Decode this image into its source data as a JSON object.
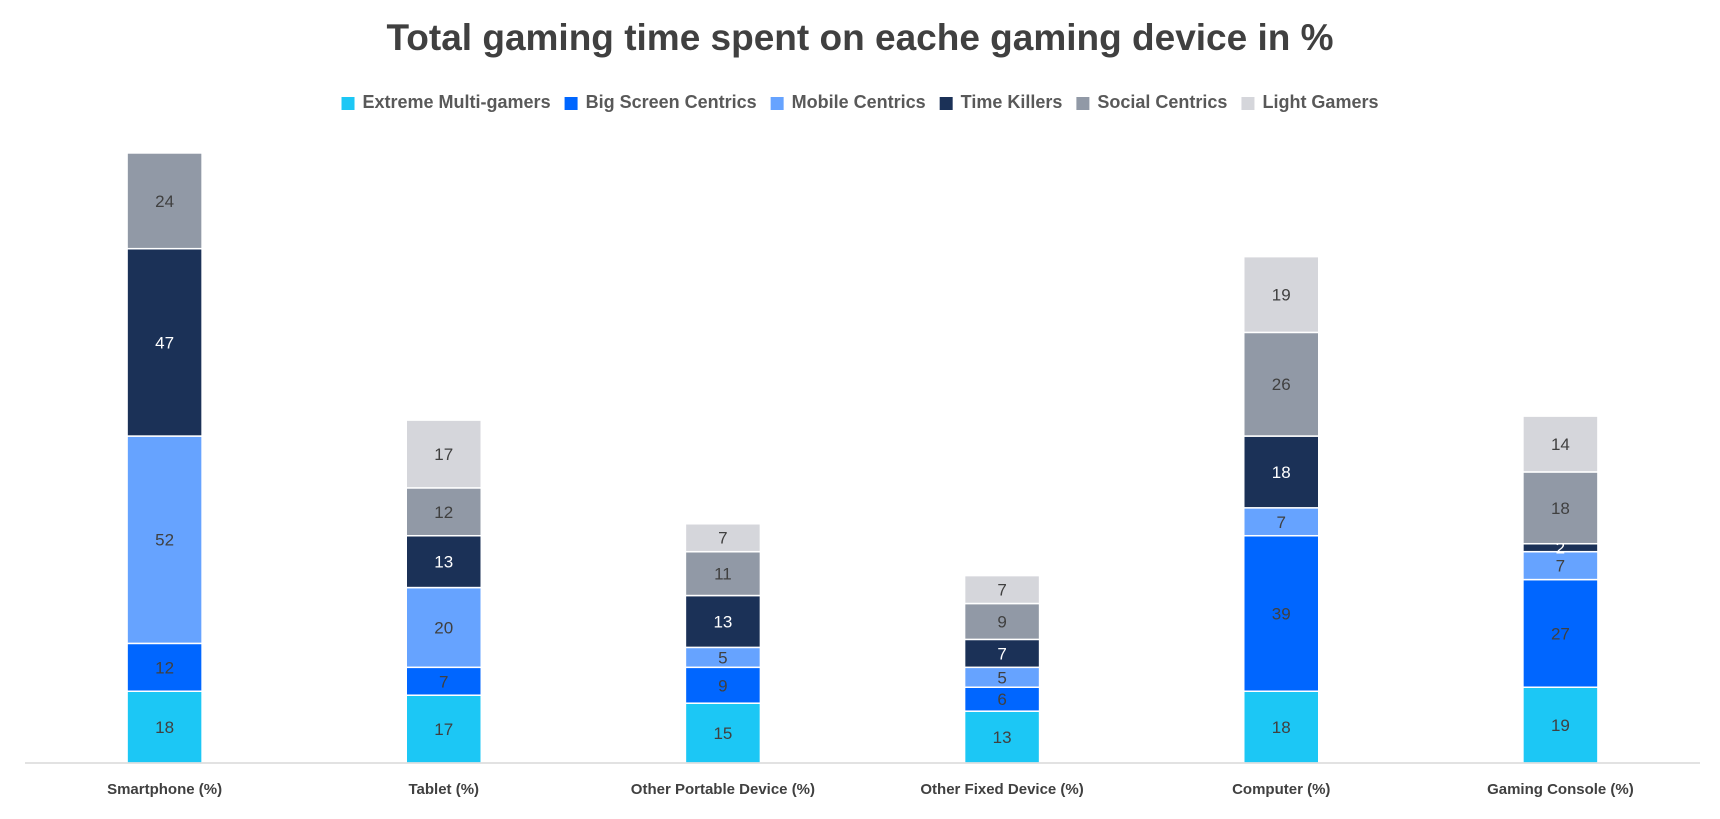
{
  "chart_data": {
    "type": "bar",
    "stacked": true,
    "title": "Total gaming time spent on eache gaming device in %",
    "xlabel": "",
    "ylabel": "",
    "legend_position": "top",
    "grid": false,
    "categories": [
      "Smartphone (%)",
      "Tablet (%)",
      "Other Portable Device (%)",
      "Other Fixed Device (%)",
      "Computer (%)",
      "Gaming Console (%)"
    ],
    "series": [
      {
        "name": "Extreme Multi-gamers",
        "color": "#1CC7F5",
        "label_color": "#404040",
        "values": [
          18,
          17,
          15,
          13,
          18,
          19
        ]
      },
      {
        "name": "Big Screen Centrics",
        "color": "#0066FF",
        "label_color": "#404040",
        "values": [
          12,
          7,
          9,
          6,
          39,
          27
        ]
      },
      {
        "name": "Mobile Centrics",
        "color": "#66A3FF",
        "label_color": "#404040",
        "values": [
          52,
          20,
          5,
          5,
          7,
          7
        ]
      },
      {
        "name": "Time Killers",
        "color": "#1B3157",
        "label_color": "#FFFFFF",
        "values": [
          47,
          13,
          13,
          7,
          18,
          2
        ]
      },
      {
        "name": "Social Centrics",
        "color": "#9199A6",
        "label_color": "#404040",
        "values": [
          24,
          12,
          11,
          9,
          26,
          18
        ]
      },
      {
        "name": "Light Gamers",
        "color": "#D5D6DB",
        "label_color": "#404040",
        "values": [
          0,
          17,
          7,
          7,
          19,
          14
        ]
      }
    ],
    "ylim": [
      0,
      155
    ]
  }
}
